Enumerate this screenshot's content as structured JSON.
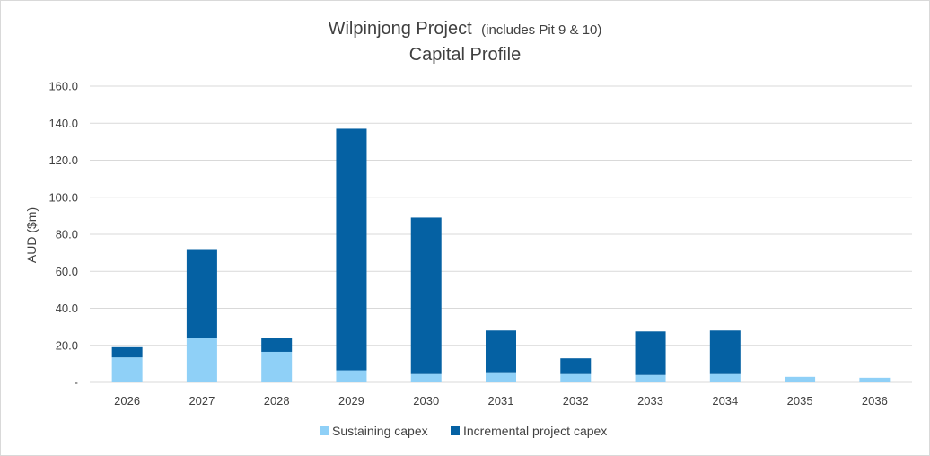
{
  "chart_data": {
    "type": "bar",
    "stacked": true,
    "title_main": "Wilpinjong Project",
    "title_note": "(includes Pit 9 & 10)",
    "subtitle": "Capital Profile",
    "ylabel": "AUD ($m)",
    "xlabel": "",
    "ylim": [
      0,
      160
    ],
    "yticks": [
      {
        "value": 0,
        "label": "-"
      },
      {
        "value": 20,
        "label": "20.0"
      },
      {
        "value": 40,
        "label": "40.0"
      },
      {
        "value": 60,
        "label": "60.0"
      },
      {
        "value": 80,
        "label": "80.0"
      },
      {
        "value": 100,
        "label": "100.0"
      },
      {
        "value": 120,
        "label": "120.0"
      },
      {
        "value": 140,
        "label": "140.0"
      },
      {
        "value": 160,
        "label": "160.0"
      }
    ],
    "categories": [
      "2026",
      "2027",
      "2028",
      "2029",
      "2030",
      "2031",
      "2032",
      "2033",
      "2034",
      "2035",
      "2036"
    ],
    "series": [
      {
        "name": "Sustaining capex",
        "color": "#8fd0f7",
        "values": [
          13.5,
          24,
          16.5,
          6.5,
          4.5,
          5.5,
          4.5,
          4,
          4.5,
          3,
          2.5
        ]
      },
      {
        "name": "Incremental project capex",
        "color": "#0561a3",
        "values": [
          5.5,
          48,
          7.5,
          130.5,
          84.5,
          22.5,
          8.5,
          23.5,
          23.5,
          0,
          0
        ]
      }
    ],
    "grid": true,
    "legend_position": "bottom"
  }
}
